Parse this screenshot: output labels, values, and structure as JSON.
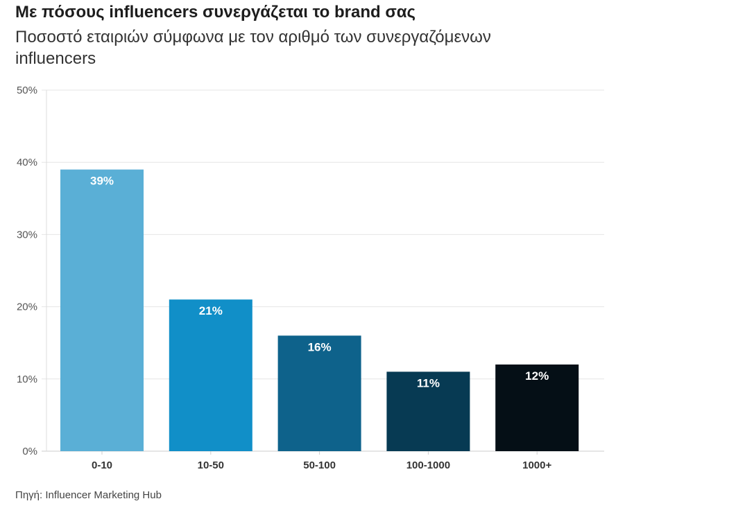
{
  "chart_data": {
    "type": "bar",
    "title": "Με πόσους influencers συνεργάζεται το brand σας",
    "subtitle": "Ποσοστό εταιριών σύμφωνα με τον αριθμό των συνεργαζόμενων influencers",
    "categories": [
      "0-10",
      "10-50",
      "50-100",
      "100-1000",
      "1000+"
    ],
    "values": [
      39,
      21,
      16,
      11,
      12
    ],
    "data_labels": [
      "39%",
      "21%",
      "16%",
      "11%",
      "12%"
    ],
    "colors": [
      "#5aafd6",
      "#118fc8",
      "#0e628b",
      "#073a53",
      "#050f16"
    ],
    "ylim": [
      0,
      50
    ],
    "yticks": [
      0,
      10,
      20,
      30,
      40,
      50
    ],
    "ytick_labels": [
      "0%",
      "10%",
      "20%",
      "30%",
      "40%",
      "50%"
    ],
    "xlabel": "",
    "ylabel": "",
    "grid": true,
    "source": "Πηγή: Influencer Marketing Hub"
  }
}
